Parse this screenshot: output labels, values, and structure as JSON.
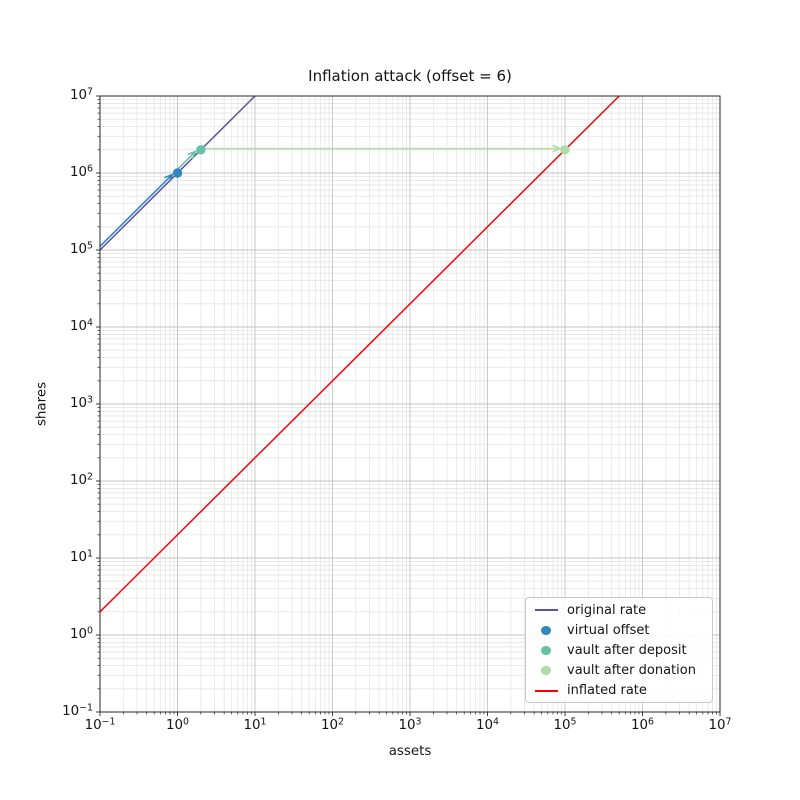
{
  "chart_data": {
    "type": "line",
    "title": "Inflation attack (offset = 6)",
    "xlabel": "assets",
    "ylabel": "shares",
    "xscale": "log",
    "yscale": "log",
    "xlim": [
      0.1,
      10000000
    ],
    "ylim": [
      0.1,
      10000000
    ],
    "x_tick_exponents": [
      -1,
      0,
      1,
      2,
      3,
      4,
      5,
      6,
      7
    ],
    "y_tick_exponents": [
      -1,
      0,
      1,
      2,
      3,
      4,
      5,
      6,
      7
    ],
    "grid": {
      "major": true,
      "minor": true,
      "major_color": "#c4c4c4",
      "minor_color": "#e5e5e5"
    },
    "series": [
      {
        "name": "original rate",
        "kind": "line",
        "color": "#5e4fa2",
        "points": [
          [
            0.1,
            100000
          ],
          [
            10,
            10000000
          ]
        ]
      },
      {
        "name": "virtual offset",
        "kind": "scatter",
        "color": "#3288bd",
        "points": [
          [
            1,
            1000000
          ]
        ]
      },
      {
        "name": "vault after deposit",
        "kind": "scatter",
        "color": "#66c2a5",
        "points": [
          [
            2,
            2000000
          ]
        ]
      },
      {
        "name": "vault after donation",
        "kind": "scatter",
        "color": "#abdda4",
        "points": [
          [
            100000,
            2000000
          ]
        ]
      },
      {
        "name": "inflated rate",
        "kind": "line",
        "color": "#ff0000",
        "points": [
          [
            0.1,
            2
          ],
          [
            500000,
            10000000
          ]
        ]
      }
    ],
    "arrows": [
      {
        "name": "virtual-offset-arrow",
        "color": "#3288bd",
        "from": [
          0.1,
          100000
        ],
        "to": [
          1,
          1000000
        ]
      },
      {
        "name": "deposit-arrow",
        "color": "#66c2a5",
        "from": [
          1,
          1000000
        ],
        "to": [
          2,
          2000000
        ]
      },
      {
        "name": "donation-arrow",
        "color": "#abdda4",
        "from": [
          2,
          2000000
        ],
        "to": [
          100000,
          2000000
        ]
      }
    ],
    "legend": {
      "position": "lower right",
      "entries": [
        {
          "label": "original rate",
          "marker": "line",
          "color": "#5e4fa2"
        },
        {
          "label": "virtual offset",
          "marker": "dot",
          "color": "#3288bd"
        },
        {
          "label": "vault after deposit",
          "marker": "dot",
          "color": "#66c2a5"
        },
        {
          "label": "vault after donation",
          "marker": "dot",
          "color": "#abdda4"
        },
        {
          "label": "inflated rate",
          "marker": "line",
          "color": "#ff0000"
        }
      ]
    }
  }
}
